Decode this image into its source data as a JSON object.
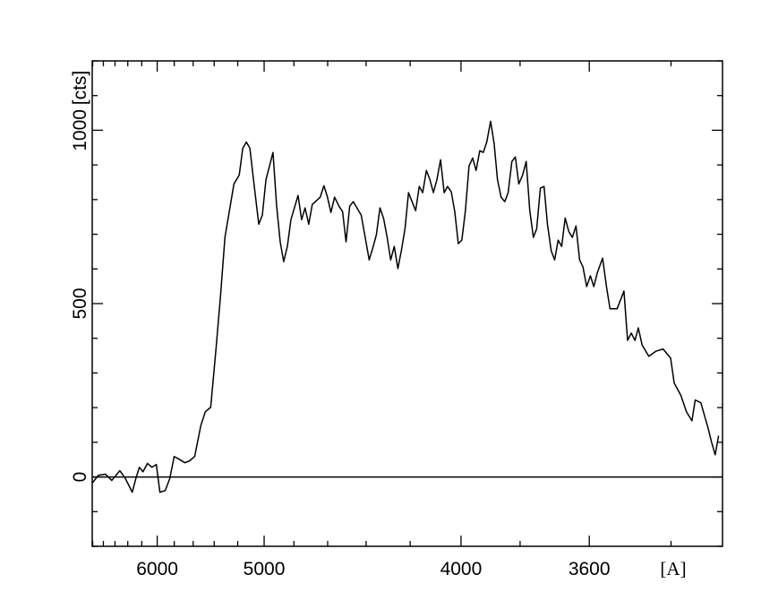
{
  "chart_data": {
    "type": "line",
    "x_label": "[A]",
    "y_label": "[cts]",
    "xscale": "inverse-square",
    "xlim": [
      7010,
      3290
    ],
    "xticks": [
      6000,
      5000,
      4000,
      3600
    ],
    "xminorticks": [
      7000,
      6800,
      6600,
      6400,
      6200,
      5800,
      5600,
      5400,
      5200,
      4800,
      4600,
      4400,
      4200,
      3800,
      3400
    ],
    "ylim": [
      -200,
      1200
    ],
    "yticks": [
      0,
      500,
      1000
    ],
    "yminorticks": [
      -200,
      -100,
      100,
      200,
      300,
      400,
      600,
      700,
      800,
      900,
      1100,
      1200
    ],
    "hline": 0,
    "color": "#000000",
    "x": [
      7011,
      6891,
      6761,
      6654,
      6523,
      6440,
      6334,
      6283,
      6233,
      6184,
      6124,
      6067,
      6011,
      5967,
      5903,
      5851,
      5801,
      5752,
      5685,
      5639,
      5585,
      5524,
      5482,
      5432,
      5384,
      5344,
      5306,
      5268,
      5231,
      5188,
      5160,
      5132,
      5105,
      5078,
      5039,
      5013,
      4987,
      4962,
      4938,
      4913,
      4889,
      4866,
      4842,
      4819,
      4774,
      4752,
      4731,
      4709,
      4688,
      4642,
      4621,
      4601,
      4582,
      4562,
      4538,
      4519,
      4501,
      4482,
      4464,
      4424,
      4402,
      4385,
      4368,
      4351,
      4334,
      4317,
      4301,
      4285,
      4269,
      4253,
      4238,
      4222,
      4207,
      4192,
      4177,
      4162,
      4148,
      4133,
      4119,
      4105,
      4091,
      4077,
      4063,
      4050,
      4036,
      4023,
      4010,
      3997,
      3984,
      3971,
      3958,
      3946,
      3933,
      3921,
      3909,
      3896,
      3884,
      3873,
      3861,
      3849,
      3838,
      3826,
      3815,
      3804,
      3792,
      3781,
      3770,
      3759,
      3749,
      3738,
      3727,
      3717,
      3706,
      3696,
      3686,
      3676,
      3666,
      3656,
      3646,
      3636,
      3626,
      3617,
      3607,
      3597,
      3588,
      3579,
      3565,
      3555,
      3546,
      3528,
      3511,
      3502,
      3493,
      3484,
      3476,
      3467,
      3451,
      3434,
      3418,
      3401,
      3393,
      3378,
      3366,
      3354,
      3347,
      3335,
      3320,
      3313,
      3305,
      3298
    ],
    "values": [
      -18,
      5,
      8,
      -10,
      18,
      -3,
      -44,
      -5,
      28,
      15,
      39,
      28,
      36,
      -44,
      -39,
      -5,
      59,
      52,
      41,
      46,
      59,
      149,
      188,
      201,
      369,
      523,
      691,
      768,
      845,
      871,
      948,
      966,
      948,
      858,
      729,
      755,
      858,
      897,
      936,
      781,
      678,
      621,
      665,
      742,
      812,
      742,
      776,
      729,
      786,
      807,
      840,
      807,
      763,
      807,
      781,
      765,
      678,
      781,
      794,
      755,
      683,
      626,
      660,
      698,
      776,
      745,
      691,
      626,
      665,
      601,
      652,
      716,
      820,
      794,
      768,
      838,
      820,
      884,
      858,
      820,
      858,
      915,
      820,
      838,
      822,
      765,
      673,
      683,
      768,
      897,
      920,
      884,
      941,
      936,
      966,
      1026,
      961,
      858,
      807,
      794,
      820,
      910,
      923,
      845,
      871,
      910,
      768,
      691,
      716,
      833,
      838,
      729,
      652,
      626,
      683,
      665,
      747,
      708,
      691,
      724,
      626,
      606,
      549,
      580,
      549,
      588,
      631,
      549,
      485,
      485,
      536,
      394,
      415,
      394,
      430,
      381,
      348,
      363,
      369,
      343,
      271,
      235,
      188,
      162,
      222,
      214,
      142,
      103,
      64,
      119
    ]
  }
}
